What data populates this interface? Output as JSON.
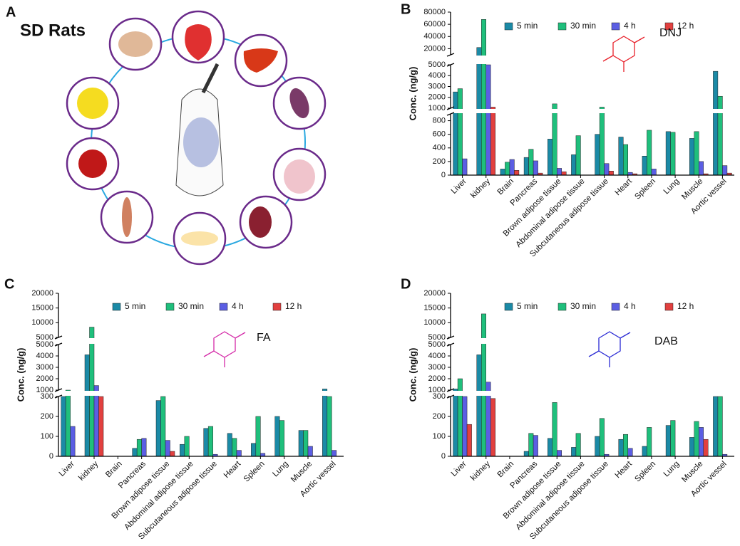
{
  "panel_a": {
    "label": "A",
    "title": "SD Rats"
  },
  "chart_data": [
    {
      "type": "bar",
      "panel": "B",
      "y_label": "Conc. (ng/g)",
      "annotation": "DNJ",
      "annotation_color": "#e8202a",
      "categories": [
        "Liver",
        "kidney",
        "Brain",
        "Pancreas",
        "Brown adipose tissue",
        "Abdominal adipose tissue",
        "Subcutaneous adipose tissue",
        "Heart",
        "Spleen",
        "Lung",
        "Muscle",
        "Aortic vessel"
      ],
      "series": [
        {
          "name": "5 min",
          "color": "#1b8aa6",
          "values": [
            2500,
            22000,
            90,
            260,
            530,
            300,
            600,
            560,
            280,
            640,
            540,
            4400
          ]
        },
        {
          "name": "30 min",
          "color": "#1fbf7c",
          "values": [
            2800,
            68000,
            190,
            380,
            1400,
            580,
            1100,
            450,
            660,
            630,
            640,
            2100
          ]
        },
        {
          "name": "4 h",
          "color": "#5b5ee3",
          "values": [
            240,
            5000,
            230,
            210,
            100,
            null,
            170,
            40,
            90,
            null,
            200,
            140
          ]
        },
        {
          "name": "12 h",
          "color": "#e2403f",
          "values": [
            null,
            1100,
            70,
            30,
            50,
            null,
            60,
            20,
            null,
            null,
            20,
            30
          ]
        }
      ],
      "y_segments": [
        {
          "ylim": [
            0,
            900
          ],
          "yticks": [
            0,
            200,
            400,
            600,
            800
          ]
        },
        {
          "ylim": [
            1000,
            5000
          ],
          "yticks": [
            1000,
            2000,
            3000,
            4000,
            5000
          ]
        },
        {
          "ylim": [
            10000,
            80000
          ],
          "yticks": [
            20000,
            40000,
            60000,
            80000
          ]
        }
      ]
    },
    {
      "type": "bar",
      "panel": "C",
      "y_label": "Conc. (ng/g)",
      "annotation": "FA",
      "annotation_color": "#d42aa8",
      "categories": [
        "Liver",
        "kidney",
        "Brain",
        "Pancreas",
        "Brown adipose tissue",
        "Abdominal adipose tissue",
        "Subcutaneous adipose tissue",
        "Heart",
        "Spleen",
        "Lung",
        "Muscle",
        "Aortic vessel"
      ],
      "series": [
        {
          "name": "5 min",
          "color": "#1b8aa6",
          "values": [
            800,
            4100,
            null,
            40,
            280,
            60,
            140,
            115,
            65,
            200,
            130,
            1100
          ]
        },
        {
          "name": "30 min",
          "color": "#1fbf7c",
          "values": [
            1000,
            8500,
            null,
            85,
            400,
            100,
            150,
            90,
            200,
            180,
            130,
            320
          ]
        },
        {
          "name": "4 h",
          "color": "#5b5ee3",
          "values": [
            150,
            1400,
            null,
            90,
            80,
            null,
            10,
            30,
            15,
            null,
            50,
            30
          ]
        },
        {
          "name": "12 h",
          "color": "#e2403f",
          "values": [
            null,
            300,
            null,
            null,
            25,
            null,
            null,
            null,
            null,
            null,
            null,
            null
          ]
        }
      ],
      "y_segments": [
        {
          "ylim": [
            0,
            300
          ],
          "yticks": [
            0,
            100,
            200,
            300
          ]
        },
        {
          "ylim": [
            1000,
            5000
          ],
          "yticks": [
            1000,
            2000,
            3000,
            4000,
            5000
          ]
        },
        {
          "ylim": [
            5000,
            20000
          ],
          "yticks": [
            5000,
            10000,
            15000,
            20000
          ]
        }
      ]
    },
    {
      "type": "bar",
      "panel": "D",
      "y_label": "Conc. (ng/g)",
      "annotation": "DAB",
      "annotation_color": "#2a2ad4",
      "categories": [
        "Liver",
        "kidney",
        "Brain",
        "Pancreas",
        "Brown adipose tissue",
        "Abdominal adipose tissue",
        "Subcutaneous adipose tissue",
        "Heart",
        "Spleen",
        "Lung",
        "Muscle",
        "Aortic vessel"
      ],
      "series": [
        {
          "name": "5 min",
          "color": "#1b8aa6",
          "values": [
            1100,
            4100,
            null,
            25,
            90,
            45,
            100,
            85,
            50,
            155,
            95,
            800
          ]
        },
        {
          "name": "30 min",
          "color": "#1fbf7c",
          "values": [
            2000,
            13000,
            null,
            115,
            270,
            115,
            190,
            110,
            145,
            180,
            175,
            500
          ]
        },
        {
          "name": "4 h",
          "color": "#5b5ee3",
          "values": [
            600,
            1700,
            null,
            105,
            30,
            null,
            10,
            40,
            null,
            null,
            145,
            10
          ]
        },
        {
          "name": "12 h",
          "color": "#e2403f",
          "values": [
            160,
            290,
            null,
            null,
            null,
            null,
            null,
            null,
            null,
            null,
            85,
            null
          ]
        }
      ],
      "y_segments": [
        {
          "ylim": [
            0,
            300
          ],
          "yticks": [
            0,
            100,
            200,
            300
          ]
        },
        {
          "ylim": [
            1000,
            5000
          ],
          "yticks": [
            1000,
            2000,
            3000,
            4000,
            5000
          ]
        },
        {
          "ylim": [
            5000,
            20000
          ],
          "yticks": [
            5000,
            10000,
            15000,
            20000
          ]
        }
      ]
    }
  ]
}
